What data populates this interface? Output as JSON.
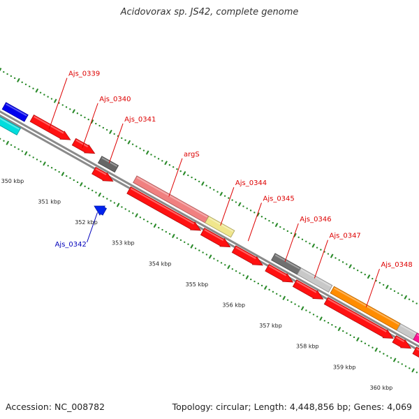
{
  "title": "Acidovorax sp. JS42, complete genome",
  "footer": {
    "accession": "Accession: NC_008782",
    "topology": "Topology: circular; Length: 4,448,856 bp; Genes: 4,069"
  },
  "colors": {
    "backbone": "#8a8a8a",
    "tick": "#2a8a2a",
    "red_gene": "#ff1111",
    "label_red": "#dd0000",
    "label_blue": "#0000bb"
  },
  "ticks": [
    {
      "kbp": 350,
      "label": "350 kbp"
    },
    {
      "kbp": 351,
      "label": "351 kbp"
    },
    {
      "kbp": 352,
      "label": "352 kbp"
    },
    {
      "kbp": 353,
      "label": "353 kbp"
    },
    {
      "kbp": 354,
      "label": "354 kbp"
    },
    {
      "kbp": 355,
      "label": "355 kbp"
    },
    {
      "kbp": 356,
      "label": "356 kbp"
    },
    {
      "kbp": 357,
      "label": "357 kbp"
    },
    {
      "kbp": 358,
      "label": "358 kbp"
    },
    {
      "kbp": 359,
      "label": "359 kbp"
    },
    {
      "kbp": 360,
      "label": "360 kbp"
    }
  ],
  "features": [
    {
      "track": "cog-outer",
      "start": 349.0,
      "end": 349.6,
      "color": "#0000ee",
      "arrow": false
    },
    {
      "track": "cog-inner",
      "start": 349.0,
      "end": 349.6,
      "color": "#00dddd",
      "arrow": false
    },
    {
      "track": "cds-outer",
      "start": 349.72,
      "end": 350.76,
      "color": "#ff1111",
      "arrow": true
    },
    {
      "track": "cds-outer",
      "start": 350.86,
      "end": 351.42,
      "color": "#ff1111",
      "arrow": true
    },
    {
      "track": "cog-outer",
      "start": 351.6,
      "end": 352.05,
      "color": "#666666",
      "arrow": false
    },
    {
      "track": "cds-inner",
      "start": 351.6,
      "end": 352.12,
      "color": "#ff1111",
      "arrow": true
    },
    {
      "track": "cog-outer",
      "start": 352.55,
      "end": 354.5,
      "color": "#f08080",
      "arrow": false
    },
    {
      "track": "cog-outer",
      "start": 354.5,
      "end": 355.2,
      "color": "#f0e68c",
      "arrow": false
    },
    {
      "track": "cds-inner",
      "start": 352.55,
      "end": 354.5,
      "color": "#ff1111",
      "arrow": true
    },
    {
      "track": "cds-inner",
      "start": 354.55,
      "end": 355.3,
      "color": "#ff1111",
      "arrow": true
    },
    {
      "track": "cds-inner",
      "start": 355.4,
      "end": 356.18,
      "color": "#ff1111",
      "arrow": true
    },
    {
      "track": "cog-outer",
      "start": 356.3,
      "end": 357.0,
      "color": "#707070",
      "arrow": false
    },
    {
      "track": "cog-outer",
      "start": 357.0,
      "end": 357.85,
      "color": "#c8c8c8",
      "arrow": false
    },
    {
      "track": "cds-inner",
      "start": 356.3,
      "end": 357.0,
      "color": "#ff1111",
      "arrow": true
    },
    {
      "track": "cds-inner",
      "start": 357.05,
      "end": 357.82,
      "color": "#ff1111",
      "arrow": true
    },
    {
      "track": "cog-outer",
      "start": 357.9,
      "end": 359.7,
      "color": "#ff8c00",
      "arrow": false
    },
    {
      "track": "cog-outer",
      "start": 359.7,
      "end": 360.15,
      "color": "#c8c8c8",
      "arrow": false
    },
    {
      "track": "cog-outer",
      "start": 360.15,
      "end": 360.9,
      "color": "#ff1493",
      "arrow": false
    },
    {
      "track": "cds-inner",
      "start": 357.9,
      "end": 359.72,
      "color": "#ff1111",
      "arrow": true
    },
    {
      "track": "cds-inner",
      "start": 359.75,
      "end": 360.2,
      "color": "#ff1111",
      "arrow": true
    },
    {
      "track": "cds-inner",
      "start": 360.3,
      "end": 360.9,
      "color": "#ff1111",
      "arrow": true
    },
    {
      "track": "cds-minus",
      "start": 352.02,
      "end": 352.3,
      "color": "#0022ee",
      "arrow": true,
      "reverse": true
    }
  ],
  "labels": [
    {
      "text": "Ajs_0339",
      "at": 350.2,
      "color": "#dd0000",
      "side": "out",
      "len": 78
    },
    {
      "text": "Ajs_0340",
      "at": 351.1,
      "color": "#dd0000",
      "side": "out",
      "len": 68
    },
    {
      "text": "Ajs_0341",
      "at": 351.83,
      "color": "#dd0000",
      "side": "out",
      "len": 60
    },
    {
      "text": "argS",
      "at": 353.45,
      "color": "#dd0000",
      "side": "out",
      "len": 58
    },
    {
      "text": "Ajs_0344",
      "at": 354.85,
      "color": "#dd0000",
      "side": "out",
      "len": 58
    },
    {
      "text": "Ajs_0345",
      "at": 355.6,
      "color": "#dd0000",
      "side": "out",
      "len": 58
    },
    {
      "text": "Ajs_0346",
      "at": 356.6,
      "color": "#dd0000",
      "side": "out",
      "len": 58
    },
    {
      "text": "Ajs_0347",
      "at": 357.4,
      "color": "#dd0000",
      "side": "out",
      "len": 58
    },
    {
      "text": "Ajs_0348",
      "at": 358.8,
      "color": "#dd0000",
      "side": "out",
      "len": 58
    },
    {
      "text": "Ajs_0342",
      "at": 352.16,
      "color": "#0000bb",
      "side": "in",
      "len": 45
    }
  ]
}
